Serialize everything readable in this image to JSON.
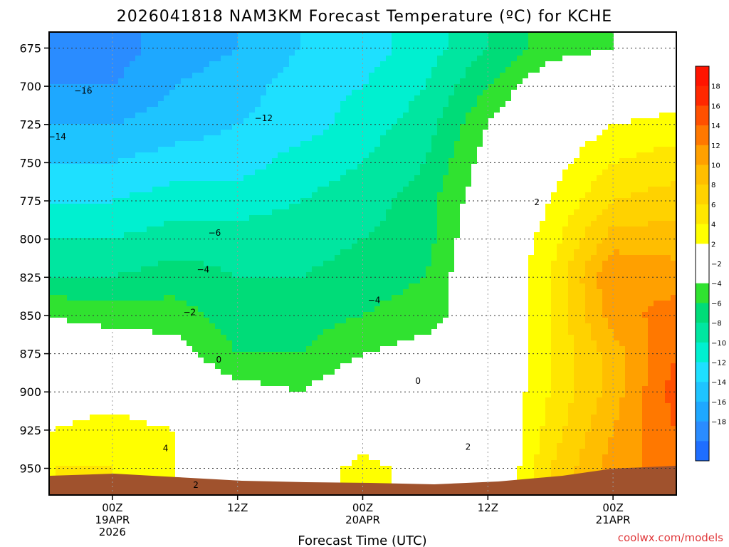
{
  "chart_data": {
    "type": "heatmap",
    "title": "2026041818 NAM3KM Forecast Temperature (ºC) for KCHE",
    "xlabel": "Forecast Time (UTC)",
    "ylabel": "",
    "x_ticks": [
      {
        "hours": 6,
        "lines": [
          "00Z",
          "19APR",
          "2026"
        ]
      },
      {
        "hours": 18,
        "lines": [
          "12Z"
        ]
      },
      {
        "hours": 30,
        "lines": [
          "00Z",
          "20APR"
        ]
      },
      {
        "hours": 42,
        "lines": [
          "12Z"
        ]
      },
      {
        "hours": 54,
        "lines": [
          "00Z",
          "21APR"
        ]
      }
    ],
    "xlim_hours": [
      0,
      60
    ],
    "y_pressure_levels": [
      675,
      700,
      725,
      750,
      775,
      800,
      825,
      850,
      875,
      900,
      925,
      950
    ],
    "ylim": [
      665,
      967
    ],
    "colorbar": {
      "levels": [
        -20,
        -18,
        -16,
        -14,
        -12,
        -10,
        -8,
        -6,
        -4,
        -2,
        2,
        4,
        6,
        8,
        10,
        12,
        14,
        16,
        18,
        20
      ],
      "tick_labels": [
        "18",
        "16",
        "14",
        "12",
        "10",
        "8",
        "6",
        "4",
        "2",
        "−2",
        "−4",
        "−6",
        "−8",
        "−10",
        "−12",
        "−14",
        "−16",
        "−18"
      ],
      "colors": [
        "#1e6eff",
        "#2a8cff",
        "#1ea8ff",
        "#1ec4ff",
        "#1ee0ff",
        "#00f0d0",
        "#00e6a0",
        "#00dc78",
        "#30e230",
        "#5ef000",
        "#ffffff",
        "#ffff00",
        "#ffe600",
        "#ffd200",
        "#ffbe00",
        "#ffa000",
        "#ff7800",
        "#ff5000",
        "#ff2800",
        "#ff1400"
      ]
    },
    "series": [
      {
        "hours": 0,
        "t": [
          -18,
          -16,
          -14,
          -12,
          -10,
          -8,
          -6,
          -2,
          0,
          2,
          4,
          6
        ]
      },
      {
        "hours": 6,
        "t": [
          -17,
          -16,
          -14,
          -12,
          -10,
          -8,
          -6,
          -3,
          0,
          3,
          5,
          6
        ]
      },
      {
        "hours": 12,
        "t": [
          -15,
          -14,
          -13,
          -11,
          -9,
          -7,
          -5,
          -3,
          -1,
          1,
          4,
          4
        ]
      },
      {
        "hours": 18,
        "t": [
          -14,
          -13,
          -12,
          -11,
          -9,
          -7,
          -6,
          -5,
          -4,
          -1,
          0,
          0
        ]
      },
      {
        "hours": 24,
        "t": [
          -12,
          -11,
          -11,
          -9,
          -8,
          -7,
          -6,
          -5,
          -4,
          -2,
          0,
          2
        ]
      },
      {
        "hours": 30,
        "t": [
          -11,
          -10,
          -9,
          -8,
          -7,
          -6,
          -5,
          -4,
          -2,
          0,
          2,
          5
        ]
      },
      {
        "hours": 36,
        "t": [
          -9,
          -8,
          -7,
          -6,
          -5,
          -5,
          -4,
          -3,
          -1,
          0,
          1,
          3
        ]
      },
      {
        "hours": 42,
        "t": [
          -6,
          -4,
          -2,
          -1,
          0,
          1,
          1,
          0,
          1,
          1,
          0,
          0
        ]
      },
      {
        "hours": 48,
        "t": [
          -3,
          0,
          2,
          3,
          4,
          5,
          6,
          6,
          6,
          6,
          7,
          8
        ]
      },
      {
        "hours": 54,
        "t": [
          -2,
          1,
          4,
          6,
          8,
          11,
          14,
          13,
          11,
          11,
          12,
          13
        ]
      },
      {
        "hours": 60,
        "t": [
          -1,
          2,
          5,
          7,
          9,
          11,
          13,
          15,
          16,
          17,
          16,
          15
        ]
      }
    ],
    "contour_labels": [
      {
        "text": "−16",
        "hours": 3.2,
        "hpa": 703
      },
      {
        "text": "−14",
        "hours": 0.7,
        "hpa": 733
      },
      {
        "text": "−12",
        "hours": 20.5,
        "hpa": 721
      },
      {
        "text": "−6",
        "hours": 15.8,
        "hpa": 796
      },
      {
        "text": "−4",
        "hours": 14.7,
        "hpa": 820
      },
      {
        "text": "−2",
        "hours": 13.4,
        "hpa": 848
      },
      {
        "text": "0",
        "hours": 16.2,
        "hpa": 879
      },
      {
        "text": "−4",
        "hours": 31.1,
        "hpa": 840
      },
      {
        "text": "0",
        "hours": 35.3,
        "hpa": 893
      },
      {
        "text": "2",
        "hours": 46.7,
        "hpa": 776
      },
      {
        "text": "2",
        "hours": 40.1,
        "hpa": 936
      },
      {
        "text": "4",
        "hours": 11.1,
        "hpa": 937
      },
      {
        "text": "2",
        "hours": 14.0,
        "hpa": 961
      }
    ]
  },
  "credit": "coolwx.com/models"
}
